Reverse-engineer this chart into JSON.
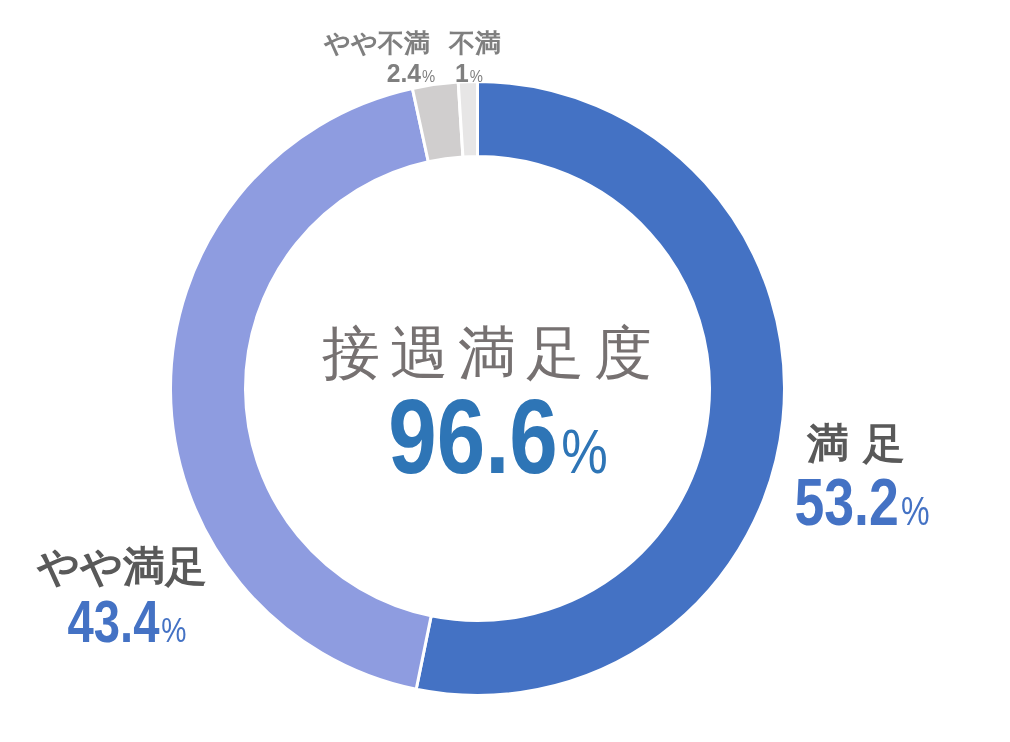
{
  "chart_data": {
    "type": "donut",
    "title": "接遇満足度",
    "categories": [
      "満 足",
      "やや満足",
      "やや不満",
      "不満"
    ],
    "values": [
      53.2,
      43.4,
      2.4,
      1
    ],
    "colors": [
      "#4472c4",
      "#8e9ce0",
      "#d0cece",
      "#e7e6e6"
    ],
    "value_labels": [
      "53.2%",
      "43.4%",
      "2.4%",
      "1%"
    ],
    "annotations": [
      "96.6%"
    ]
  }
}
